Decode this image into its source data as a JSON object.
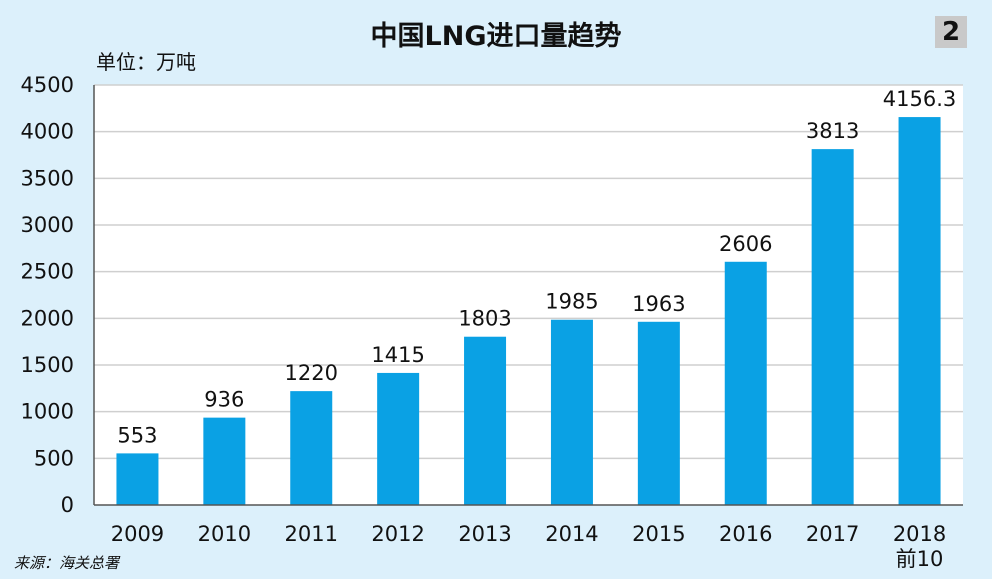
{
  "page": {
    "title": "中国LNG进口量趋势",
    "badge": "2",
    "unit_label": "单位：万吨",
    "source": "来源：海关总署"
  },
  "chart_data": {
    "type": "bar",
    "title": "中国LNG进口量趋势",
    "ylabel": "单位：万吨",
    "xlabel": "",
    "categories": [
      "2009",
      "2010",
      "2011",
      "2012",
      "2013",
      "2014",
      "2015",
      "2016",
      "2017",
      "2018\n前10"
    ],
    "values": [
      553,
      936,
      1220,
      1415,
      1803,
      1985,
      1963,
      2606,
      3813,
      4156.3
    ],
    "data_labels": [
      "553",
      "936",
      "1220",
      "1415",
      "1803",
      "1985",
      "1963",
      "2606",
      "3813",
      "4156.3"
    ],
    "ylim": [
      0,
      4500
    ],
    "yticks": [
      0,
      500,
      1000,
      1500,
      2000,
      2500,
      3000,
      3500,
      4000,
      4500
    ],
    "grid": true,
    "colors": {
      "bar": "#0aa1e4",
      "grid": "#cfcfcf",
      "axis": "#555555"
    }
  }
}
